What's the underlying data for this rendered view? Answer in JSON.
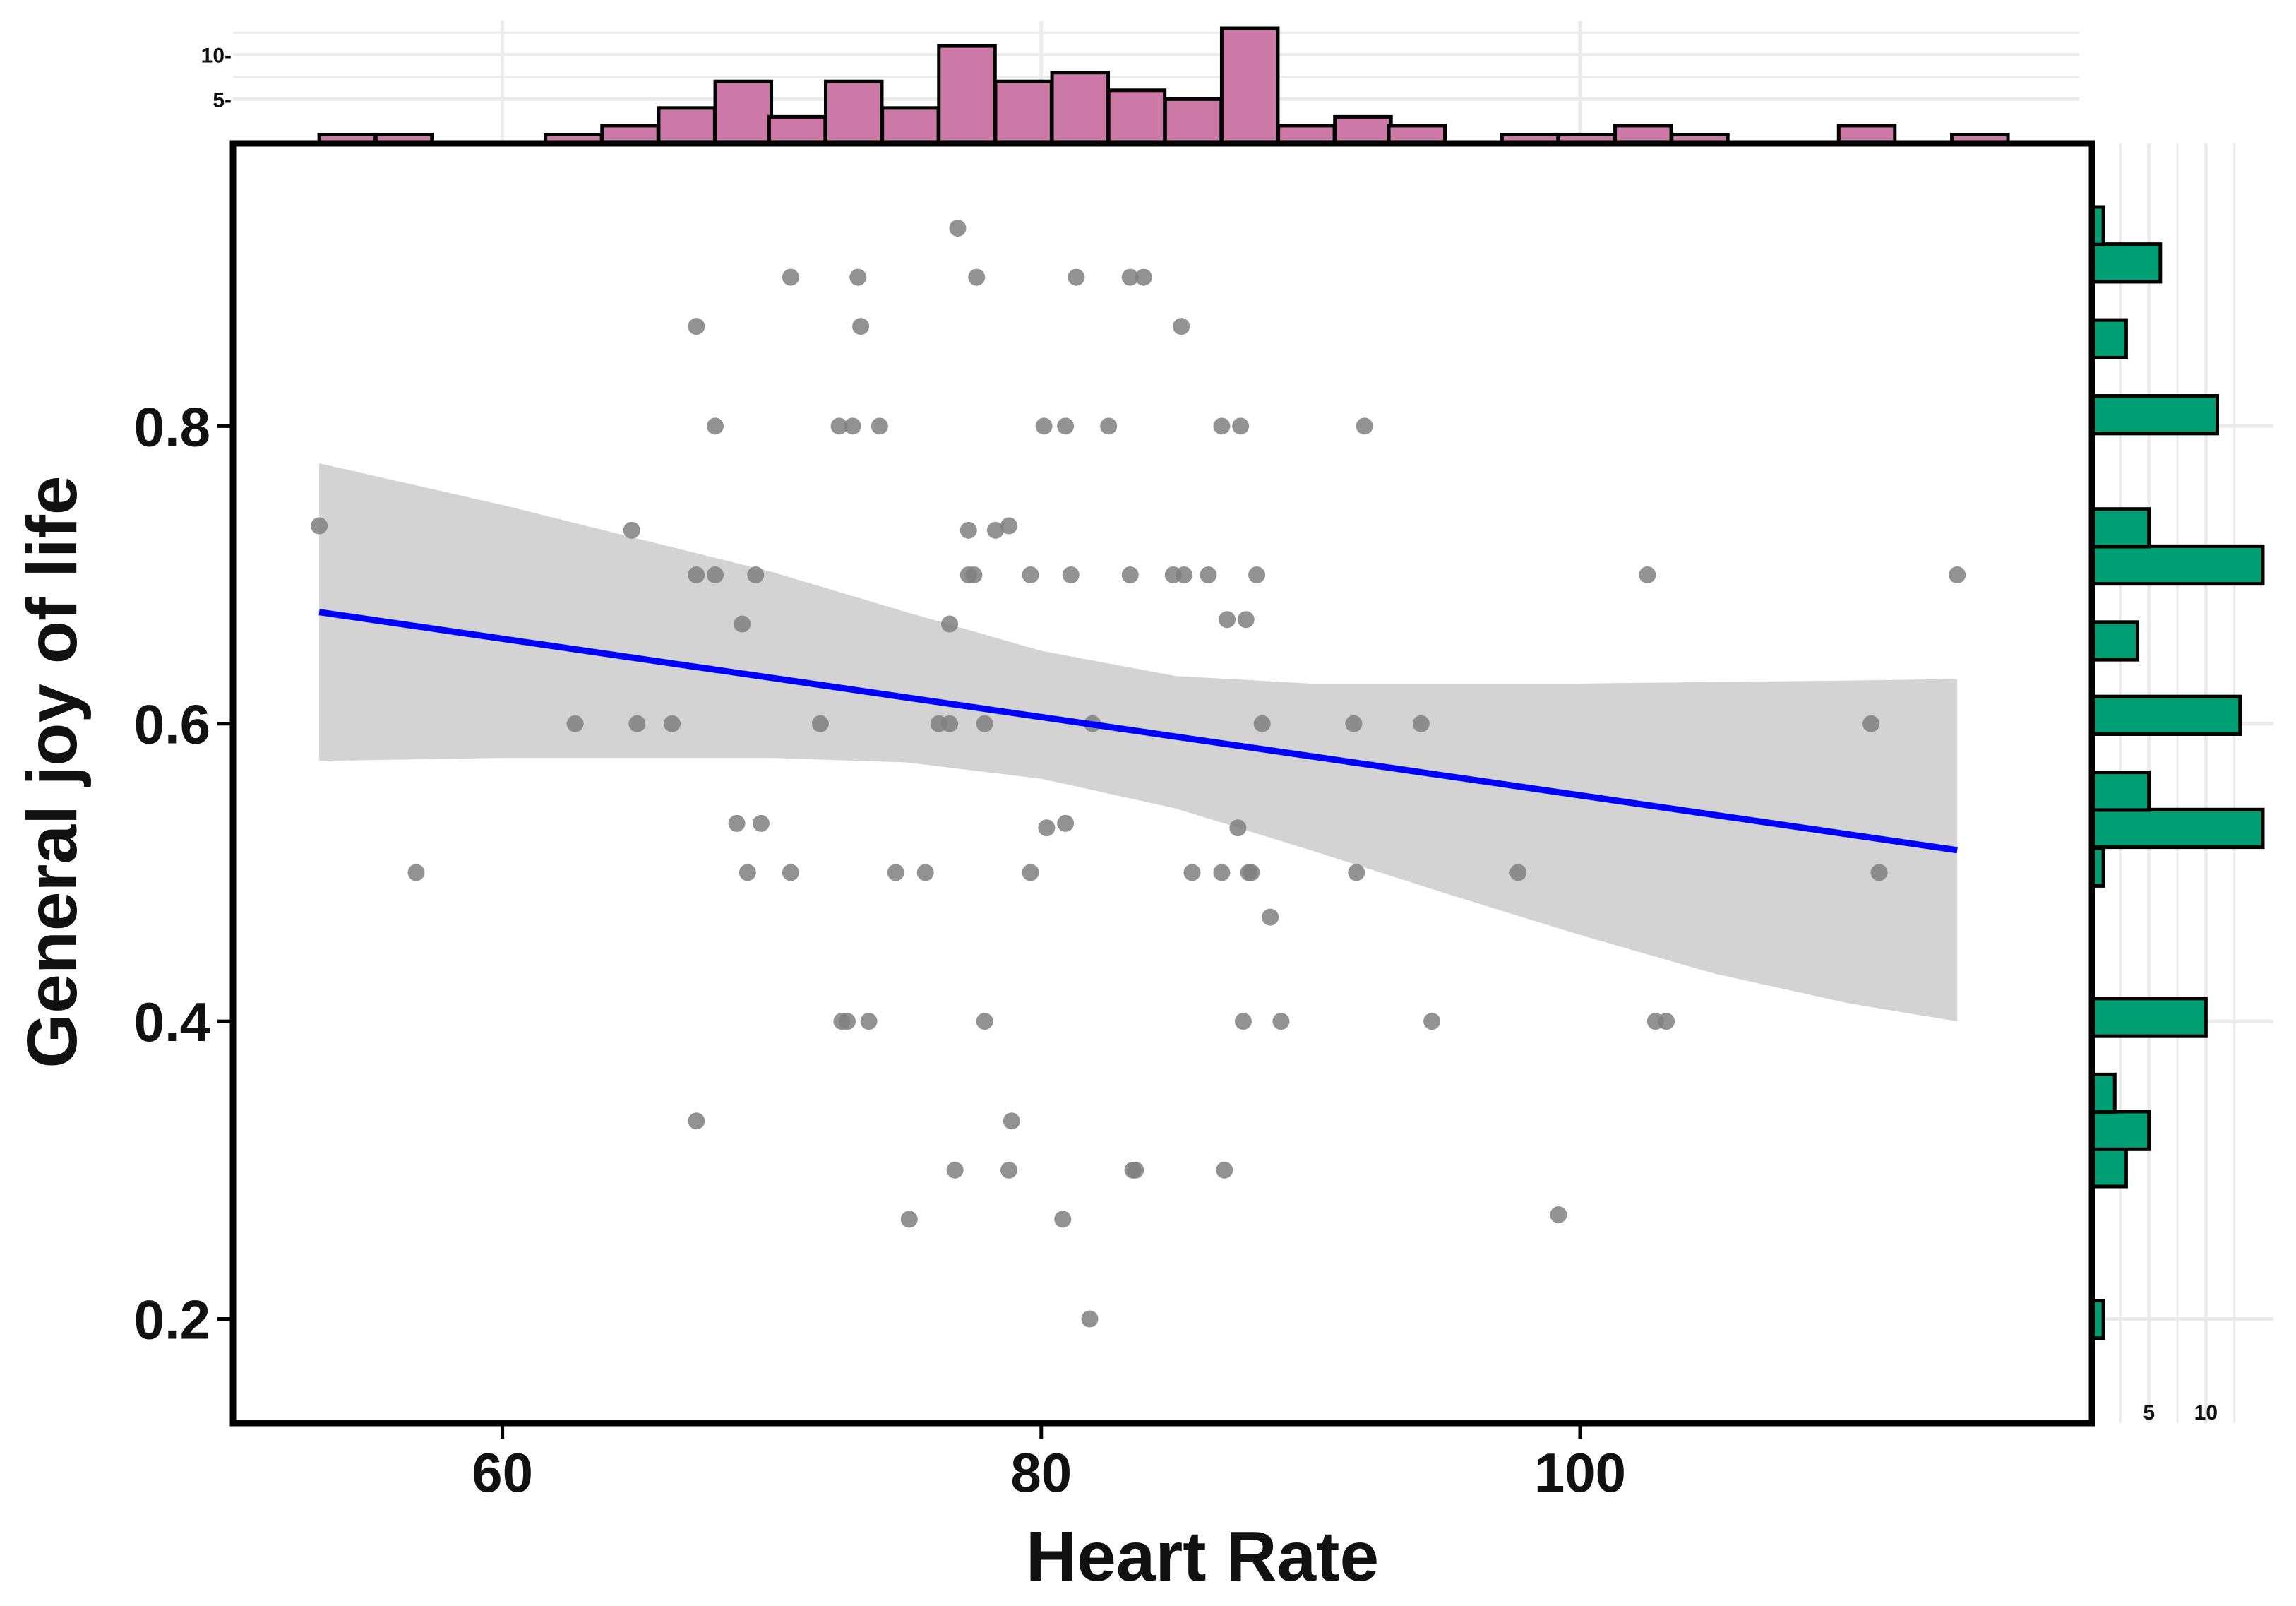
{
  "chart_data": {
    "type": "scatter",
    "xlabel": "Heart Rate",
    "ylabel": "General joy of life",
    "xlim": [
      50,
      119
    ],
    "ylim": [
      0.13,
      0.99
    ],
    "x_ticks": [
      60,
      80,
      100
    ],
    "y_ticks": [
      0.2,
      0.4,
      0.6,
      0.8
    ],
    "x_tick_labels": [
      "60",
      "80",
      "100"
    ],
    "y_tick_labels": [
      "0.2",
      "0.4",
      "0.6",
      "0.8"
    ],
    "points": [
      [
        53.2,
        0.733
      ],
      [
        56.8,
        0.5
      ],
      [
        62.7,
        0.6
      ],
      [
        64.8,
        0.73
      ],
      [
        65.0,
        0.6
      ],
      [
        66.3,
        0.6
      ],
      [
        67.2,
        0.867
      ],
      [
        67.2,
        0.7
      ],
      [
        67.2,
        0.333
      ],
      [
        67.9,
        0.8
      ],
      [
        67.9,
        0.7
      ],
      [
        68.7,
        0.533
      ],
      [
        68.9,
        0.667
      ],
      [
        69.1,
        0.5
      ],
      [
        69.4,
        0.7
      ],
      [
        69.6,
        0.533
      ],
      [
        70.7,
        0.9
      ],
      [
        70.7,
        0.5
      ],
      [
        71.8,
        0.6
      ],
      [
        72.5,
        0.8
      ],
      [
        72.6,
        0.4
      ],
      [
        72.8,
        0.4
      ],
      [
        73.0,
        0.8
      ],
      [
        73.2,
        0.9
      ],
      [
        73.3,
        0.867
      ],
      [
        73.6,
        0.4
      ],
      [
        74.0,
        0.8
      ],
      [
        74.6,
        0.5
      ],
      [
        75.1,
        0.267
      ],
      [
        75.7,
        0.5
      ],
      [
        76.2,
        0.6
      ],
      [
        76.6,
        0.6
      ],
      [
        76.6,
        0.667
      ],
      [
        76.8,
        0.3
      ],
      [
        76.9,
        0.933
      ],
      [
        77.3,
        0.73
      ],
      [
        77.3,
        0.7
      ],
      [
        77.5,
        0.7
      ],
      [
        77.6,
        0.9
      ],
      [
        77.9,
        0.6
      ],
      [
        77.9,
        0.4
      ],
      [
        78.3,
        0.73
      ],
      [
        78.8,
        0.733
      ],
      [
        78.8,
        0.3
      ],
      [
        78.9,
        0.333
      ],
      [
        79.6,
        0.7
      ],
      [
        79.6,
        0.5
      ],
      [
        80.1,
        0.8
      ],
      [
        80.2,
        0.53
      ],
      [
        80.8,
        0.267
      ],
      [
        80.9,
        0.8
      ],
      [
        80.9,
        0.533
      ],
      [
        81.1,
        0.7
      ],
      [
        81.3,
        0.9
      ],
      [
        81.8,
        0.2
      ],
      [
        81.9,
        0.6
      ],
      [
        82.5,
        0.8
      ],
      [
        83.3,
        0.9
      ],
      [
        83.3,
        0.7
      ],
      [
        83.4,
        0.3
      ],
      [
        83.5,
        0.3
      ],
      [
        83.8,
        0.9
      ],
      [
        84.9,
        0.7
      ],
      [
        85.2,
        0.867
      ],
      [
        85.3,
        0.7
      ],
      [
        85.6,
        0.5
      ],
      [
        86.2,
        0.7
      ],
      [
        86.7,
        0.5
      ],
      [
        86.7,
        0.8
      ],
      [
        86.8,
        0.3
      ],
      [
        86.9,
        0.67
      ],
      [
        87.3,
        0.53
      ],
      [
        87.4,
        0.8
      ],
      [
        87.5,
        0.4
      ],
      [
        87.6,
        0.67
      ],
      [
        87.7,
        0.5
      ],
      [
        87.8,
        0.5
      ],
      [
        88.0,
        0.7
      ],
      [
        88.2,
        0.6
      ],
      [
        88.5,
        0.47
      ],
      [
        88.9,
        0.4
      ],
      [
        91.6,
        0.6
      ],
      [
        91.7,
        0.5
      ],
      [
        92.0,
        0.8
      ],
      [
        94.1,
        0.6
      ],
      [
        94.5,
        0.4
      ],
      [
        97.7,
        0.5
      ],
      [
        99.2,
        0.27
      ],
      [
        102.5,
        0.7
      ],
      [
        102.8,
        0.4
      ],
      [
        103.2,
        0.4
      ],
      [
        110.8,
        0.6
      ],
      [
        111.1,
        0.5
      ],
      [
        114.0,
        0.7
      ]
    ],
    "fit_line": {
      "x": [
        53.2,
        114.0
      ],
      "y": [
        0.675,
        0.515
      ],
      "color": "#0000ff"
    },
    "confidence_band": {
      "x": [
        53.2,
        60,
        70,
        75,
        80,
        85,
        90,
        95,
        100,
        105,
        110,
        114
      ],
      "upper": [
        0.775,
        0.747,
        0.702,
        0.675,
        0.649,
        0.632,
        0.627,
        0.627,
        0.627,
        0.628,
        0.629,
        0.63
      ],
      "lower": [
        0.575,
        0.577,
        0.577,
        0.574,
        0.563,
        0.543,
        0.515,
        0.486,
        0.458,
        0.432,
        0.412,
        0.4
      ],
      "color": "#d3d3d3"
    },
    "point_color": "#7f7f7f",
    "top_histogram": {
      "variable": "Heart Rate",
      "bin_width": 2.083,
      "bin_starts": [
        53.2,
        55.3,
        61.6,
        63.7,
        65.8,
        67.9,
        69.9,
        72.0,
        74.1,
        76.2,
        78.3,
        80.4,
        82.5,
        84.6,
        86.7,
        88.8,
        90.9,
        92.9,
        97.1,
        99.2,
        101.3,
        103.4,
        109.6,
        113.8
      ],
      "counts": [
        1,
        1,
        1,
        2,
        4,
        7,
        3,
        7,
        4,
        11,
        7,
        8,
        6,
        5,
        13,
        2,
        3,
        2,
        1,
        1,
        2,
        1,
        2,
        1
      ],
      "count_ticks": [
        5,
        10
      ],
      "count_tick_labels": [
        "5-",
        "10-"
      ],
      "count_max": 13,
      "color": "#cc79a7"
    },
    "right_histogram": {
      "variable": "General joy of life",
      "bin_width": 0.0253,
      "bin_starts": [
        0.187,
        0.289,
        0.314,
        0.339,
        0.39,
        0.491,
        0.517,
        0.542,
        0.593,
        0.643,
        0.694,
        0.719,
        0.795,
        0.846,
        0.897,
        0.922
      ],
      "counts": [
        1,
        3,
        5,
        2,
        10,
        1,
        15,
        5,
        13,
        4,
        15,
        5,
        11,
        3,
        6,
        1
      ],
      "count_ticks": [
        5,
        10
      ],
      "count_tick_labels": [
        "5",
        "10"
      ],
      "count_max": 15,
      "color": "#009e73"
    }
  }
}
